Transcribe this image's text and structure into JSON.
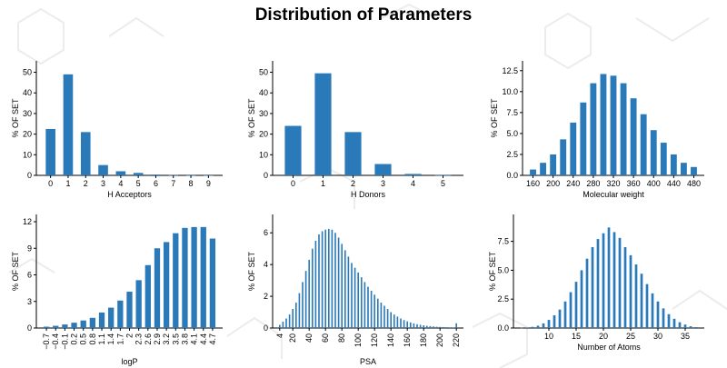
{
  "page": {
    "title": "Distribution of Parameters"
  },
  "colors": {
    "bar": "#2a7ab9",
    "background": "#ffffff",
    "pattern": "#ececec"
  },
  "chart_data": [
    {
      "type": "bar",
      "id": "h-acceptors",
      "xlabel": "H Acceptors",
      "ylabel": "% OF SET",
      "ylim": [
        0,
        52
      ],
      "yticks": [
        0,
        10,
        20,
        30,
        40,
        50
      ],
      "ytick_labels": [
        "0",
        "10",
        "20",
        "30",
        "40",
        "50"
      ],
      "categories": [
        "0",
        "1",
        "2",
        "3",
        "4",
        "5",
        "6",
        "7",
        "8",
        "9"
      ],
      "values": [
        22.5,
        49,
        21,
        5,
        2,
        1.2,
        0.4,
        0.1,
        0.05,
        0.02
      ],
      "xtick_rotate": false
    },
    {
      "type": "bar",
      "id": "h-donors",
      "xlabel": "H Donors",
      "ylabel": "% OF SET",
      "ylim": [
        0,
        52
      ],
      "yticks": [
        0,
        10,
        20,
        30,
        40,
        50
      ],
      "ytick_labels": [
        "0",
        "10",
        "20",
        "30",
        "40",
        "50"
      ],
      "categories": [
        "0",
        "1",
        "2",
        "3",
        "4",
        "5"
      ],
      "values": [
        24,
        49.5,
        21,
        5.5,
        0.7,
        0.1
      ],
      "xtick_rotate": false
    },
    {
      "type": "bar",
      "id": "molecular-weight",
      "xlabel": "Molecular weight",
      "ylabel": "% OF SET",
      "ylim": [
        0,
        12.8
      ],
      "yticks": [
        0,
        2.5,
        5,
        7.5,
        10,
        12.5
      ],
      "ytick_labels": [
        "0.0",
        "2.5",
        "5.0",
        "7.5",
        "10.0",
        "12.5"
      ],
      "categories": [
        "160",
        "180",
        "200",
        "220",
        "240",
        "260",
        "280",
        "300",
        "320",
        "340",
        "360",
        "380",
        "400",
        "420",
        "440",
        "460",
        "480"
      ],
      "tick_labels_shown": [
        "160",
        "200",
        "240",
        "280",
        "320",
        "360",
        "400",
        "440",
        "480"
      ],
      "values": [
        0.7,
        1.5,
        2.5,
        4.3,
        6.3,
        8.7,
        11,
        12.1,
        11.9,
        11,
        9.2,
        7.3,
        5.4,
        3.9,
        2.5,
        1.5,
        1.0
      ],
      "xtick_rotate": false
    },
    {
      "type": "bar",
      "id": "logp",
      "xlabel": "logP",
      "ylabel": "% OF SET",
      "ylim": [
        0,
        12
      ],
      "yticks": [
        0,
        3,
        6,
        9,
        12
      ],
      "ytick_labels": [
        "0",
        "3",
        "6",
        "9",
        "12"
      ],
      "categories": [
        "-0.7",
        "-0.4",
        "-0.1",
        "0.2",
        "0.5",
        "0.8",
        "1.1",
        "1.4",
        "1.7",
        "2",
        "2.3",
        "2.6",
        "2.9",
        "3.2",
        "3.5",
        "3.8",
        "4.1",
        "4.4",
        "4.7"
      ],
      "tick_labels_shown": [
        "−0.7",
        "−0.4",
        "−0.1",
        "0.2",
        "0.5",
        "0.8",
        "1.1",
        "1.4",
        "1.7",
        "2",
        "2.3",
        "2.6",
        "2.9",
        "3.2",
        "3.5",
        "3.8",
        "4.1",
        "4.4",
        "4.7"
      ],
      "values": [
        0.15,
        0.25,
        0.4,
        0.6,
        0.85,
        1.15,
        1.75,
        2.3,
        3.1,
        4.1,
        5.4,
        7.1,
        9.0,
        9.7,
        10.7,
        11.3,
        11.4,
        11.4,
        10.1
      ],
      "xtick_rotate": true
    },
    {
      "type": "bar",
      "id": "psa",
      "xlabel": "PSA",
      "ylabel": "% OF SET",
      "ylim": [
        0,
        6.7
      ],
      "yticks": [
        0,
        2,
        4,
        6
      ],
      "ytick_labels": [
        "0",
        "2",
        "4",
        "6"
      ],
      "x_start": 4,
      "x_step": 4,
      "values": [
        0.2,
        0.4,
        0.6,
        0.85,
        1.2,
        1.6,
        2.2,
        2.9,
        3.6,
        4.3,
        5.0,
        5.5,
        5.9,
        6.1,
        6.2,
        6.25,
        6.2,
        6.0,
        5.7,
        5.3,
        4.9,
        4.5,
        4.1,
        3.8,
        3.5,
        3.2,
        2.9,
        2.6,
        2.35,
        2.1,
        1.85,
        1.6,
        1.4,
        1.2,
        1.0,
        0.85,
        0.72,
        0.6,
        0.5,
        0.42,
        0.35,
        0.29,
        0.24,
        0.2,
        0.17,
        0.14,
        0.12,
        0.1,
        0.08,
        0.07,
        0.06,
        0.05,
        0.04,
        0.035,
        0.3
      ],
      "tick_labels_shown": [
        "4",
        "20",
        "40",
        "60",
        "80",
        "100",
        "120",
        "140",
        "160",
        "180",
        "200",
        "220"
      ],
      "xtick_rotate": true
    },
    {
      "type": "bar",
      "id": "number-of-atoms",
      "xlabel": "Number of Atoms",
      "ylabel": "% OF SET",
      "ylim": [
        0,
        9.2
      ],
      "yticks": [
        0,
        2.5,
        5,
        7.5
      ],
      "ytick_labels": [
        "0.0",
        "2.5",
        "5.0",
        "7.5"
      ],
      "x_start": 5,
      "x_step": 1,
      "values": [
        0.02,
        0.05,
        0.1,
        0.2,
        0.4,
        0.7,
        1.1,
        1.6,
        2.3,
        3.1,
        4.0,
        5.0,
        6.0,
        7.0,
        7.7,
        8.2,
        8.7,
        8.3,
        7.8,
        7.0,
        6.3,
        5.5,
        4.7,
        3.8,
        3.0,
        2.3,
        1.7,
        1.2,
        0.8,
        0.5,
        0.3,
        0.15,
        0.08
      ],
      "tick_labels_shown": [
        "10",
        "15",
        "20",
        "25",
        "30",
        "35"
      ],
      "xtick_rotate": false
    }
  ]
}
